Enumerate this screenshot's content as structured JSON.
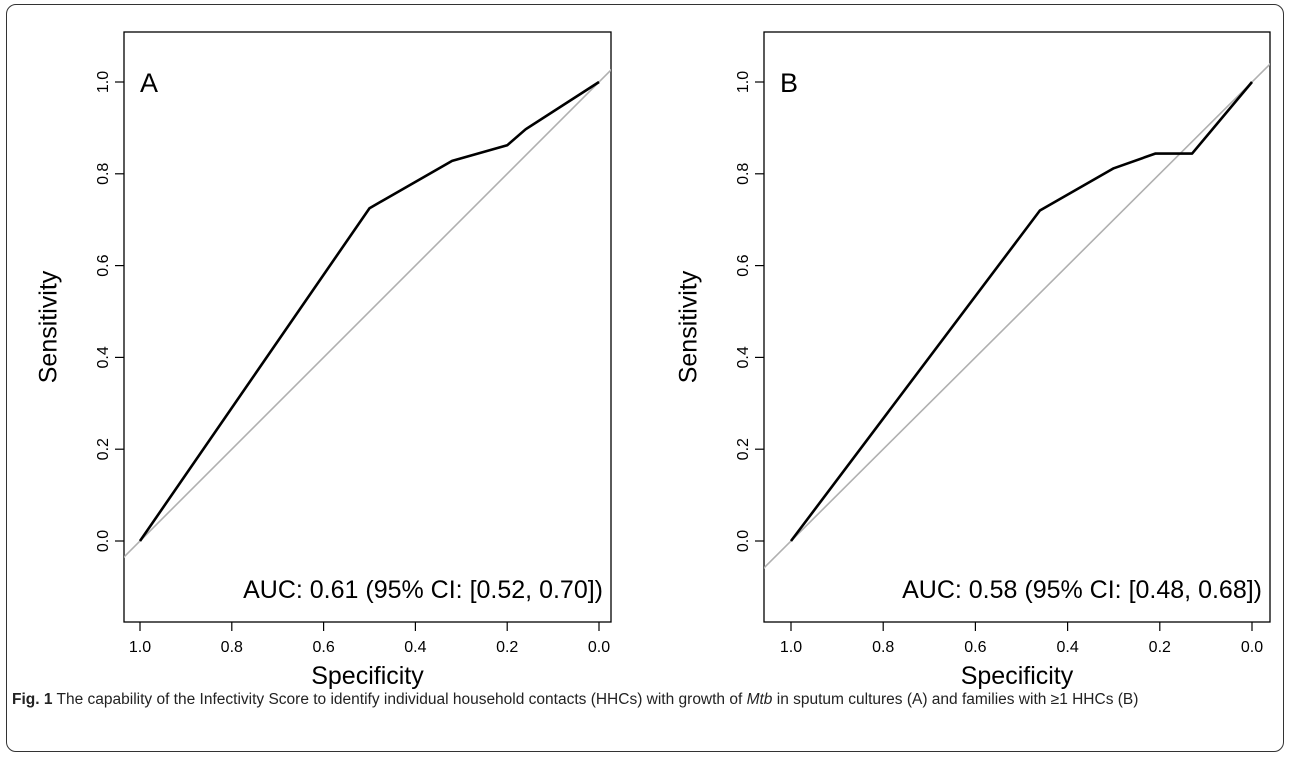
{
  "chart_data": [
    {
      "type": "line",
      "panel_label": "A",
      "xlabel": "Specificity",
      "ylabel": "Sensitivity",
      "xlim": [
        1.0,
        0.0
      ],
      "ylim": [
        0.0,
        1.0
      ],
      "x_reversed": true,
      "x_ticks": [
        "1.0",
        "0.8",
        "0.6",
        "0.4",
        "0.2",
        "0.0"
      ],
      "y_ticks": [
        "0.0",
        "0.2",
        "0.4",
        "0.6",
        "0.8",
        "1.0"
      ],
      "grid": false,
      "series": [
        {
          "x": [
            1.0,
            0.5,
            0.32,
            0.2,
            0.16,
            0.0
          ],
          "y": [
            0.0,
            0.725,
            0.828,
            0.862,
            0.897,
            1.0
          ]
        }
      ],
      "reference_line": {
        "x": [
          1.0,
          0.0
        ],
        "y": [
          0.0,
          1.0
        ]
      },
      "annotation": "AUC: 0.61 (95% CI: [0.52, 0.70])"
    },
    {
      "type": "line",
      "panel_label": "B",
      "xlabel": "Specificity",
      "ylabel": "Sensitivity",
      "xlim": [
        1.0,
        0.0
      ],
      "ylim": [
        0.0,
        1.0
      ],
      "x_reversed": true,
      "x_ticks": [
        "1.0",
        "0.8",
        "0.6",
        "0.4",
        "0.2",
        "0.0"
      ],
      "y_ticks": [
        "0.0",
        "0.2",
        "0.4",
        "0.6",
        "0.8",
        "1.0"
      ],
      "grid": false,
      "series": [
        {
          "x": [
            1.0,
            0.46,
            0.3,
            0.21,
            0.13,
            0.0
          ],
          "y": [
            0.0,
            0.72,
            0.812,
            0.844,
            0.844,
            1.0
          ]
        }
      ],
      "reference_line": {
        "x": [
          1.0,
          0.0
        ],
        "y": [
          0.0,
          1.0
        ]
      },
      "annotation": "AUC: 0.58 (95% CI: [0.48, 0.68])"
    }
  ],
  "caption": {
    "label": "Fig. 1",
    "text_before": " The capability of the Infectivity Score to identify individual household contacts (HHCs) with growth of ",
    "italic": "Mtb",
    "text_after": " in sputum cultures (A) and families with ≥1 HHCs (B)"
  },
  "colors": {
    "roc_line": "#000000",
    "reference_line": "#b0b0b0",
    "frame": "#333333"
  }
}
